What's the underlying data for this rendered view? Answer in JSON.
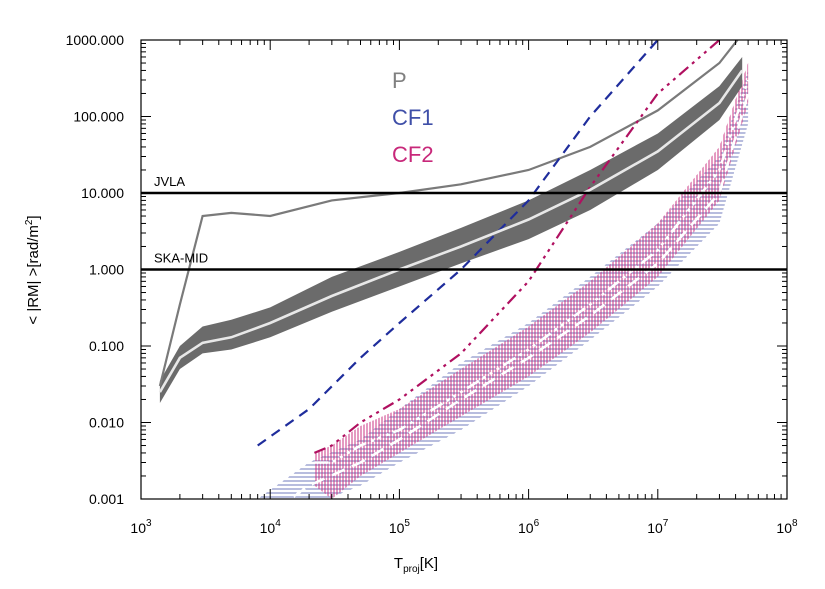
{
  "chart_data": {
    "type": "line",
    "xlabel": {
      "main": "T",
      "sub": "proj",
      "unit": "[K]"
    },
    "ylabel": {
      "pre": "< |RM| >[rad/m",
      "sup": "2",
      "post": "]"
    },
    "xlim": [
      1000,
      100000000
    ],
    "ylim": [
      0.001,
      1000
    ],
    "xscale": "log",
    "yscale": "log",
    "x_tick_labels": [
      {
        "value": 1000,
        "base": "10",
        "exp": "3"
      },
      {
        "value": 10000,
        "base": "10",
        "exp": "4"
      },
      {
        "value": 100000,
        "base": "10",
        "exp": "5"
      },
      {
        "value": 1000000,
        "base": "10",
        "exp": "6"
      },
      {
        "value": 10000000,
        "base": "10",
        "exp": "7"
      },
      {
        "value": 100000000,
        "base": "10",
        "exp": "8"
      }
    ],
    "y_tick_labels": [
      {
        "value": 0.001,
        "text": "0.001"
      },
      {
        "value": 0.01,
        "text": "0.010"
      },
      {
        "value": 0.1,
        "text": "0.100"
      },
      {
        "value": 1,
        "text": "1.000"
      },
      {
        "value": 10,
        "text": "10.000"
      },
      {
        "value": 100,
        "text": "100.000"
      },
      {
        "value": 1000,
        "text": "1000.000"
      }
    ],
    "reference_lines": [
      {
        "name": "JVLA",
        "value": 10
      },
      {
        "name": "SKA-MID",
        "value": 1
      }
    ],
    "legend": [
      {
        "name": "P",
        "color": "#808080"
      },
      {
        "name": "CF1",
        "color": "#3f4fa8"
      },
      {
        "name": "CF2",
        "color": "#c8287a"
      }
    ],
    "series": [
      {
        "name": "P",
        "color": "#6e6e6e",
        "x": [
          1400,
          2000,
          3000,
          5000,
          10000,
          30000,
          100000,
          300000,
          1000000,
          3000000,
          10000000,
          30000000,
          45000000
        ],
        "median": [
          0.025,
          0.07,
          0.11,
          0.13,
          0.2,
          0.45,
          1.0,
          2.0,
          4.5,
          11,
          35,
          150,
          400
        ],
        "lower": [
          0.018,
          0.05,
          0.08,
          0.09,
          0.13,
          0.28,
          0.6,
          1.2,
          2.5,
          6,
          20,
          90,
          250
        ],
        "upper": [
          0.035,
          0.1,
          0.18,
          0.22,
          0.32,
          0.8,
          1.7,
          3.5,
          8,
          20,
          60,
          250,
          600
        ],
        "max": [
          0.03,
          0.35,
          5,
          5.5,
          5,
          8,
          10,
          13,
          20,
          40,
          120,
          500,
          1200
        ]
      },
      {
        "name": "CF1",
        "color": "#3f4fa8",
        "x": [
          8000,
          20000,
          50000,
          100000,
          300000,
          1000000,
          3000000,
          10000000,
          30000000,
          50000000
        ],
        "median": [
          0.0005,
          0.0015,
          0.003,
          0.006,
          0.02,
          0.07,
          0.25,
          1.2,
          10,
          200
        ],
        "lower": [
          0.0003,
          0.0008,
          0.0015,
          0.003,
          0.008,
          0.03,
          0.12,
          0.6,
          4,
          80
        ],
        "upper": [
          0.001,
          0.003,
          0.006,
          0.015,
          0.06,
          0.2,
          0.8,
          4,
          30,
          400
        ],
        "max": [
          0.005,
          0.015,
          0.07,
          0.2,
          1.0,
          8,
          100,
          1000,
          5000,
          8000
        ]
      },
      {
        "name": "CF2",
        "color": "#c8287a",
        "x": [
          22000,
          30000,
          50000,
          100000,
          300000,
          1000000,
          3000000,
          10000000,
          30000000,
          50000000
        ],
        "median": [
          0.003,
          0.003,
          0.005,
          0.008,
          0.025,
          0.09,
          0.35,
          1.8,
          20,
          300
        ],
        "lower": [
          0.0015,
          0.001,
          0.002,
          0.004,
          0.012,
          0.04,
          0.15,
          0.8,
          8,
          150
        ],
        "upper": [
          0.004,
          0.005,
          0.009,
          0.015,
          0.05,
          0.18,
          0.7,
          4,
          40,
          500
        ],
        "max": [
          0.004,
          0.005,
          0.01,
          0.02,
          0.08,
          0.7,
          12,
          200,
          1000,
          2000
        ]
      }
    ]
  }
}
